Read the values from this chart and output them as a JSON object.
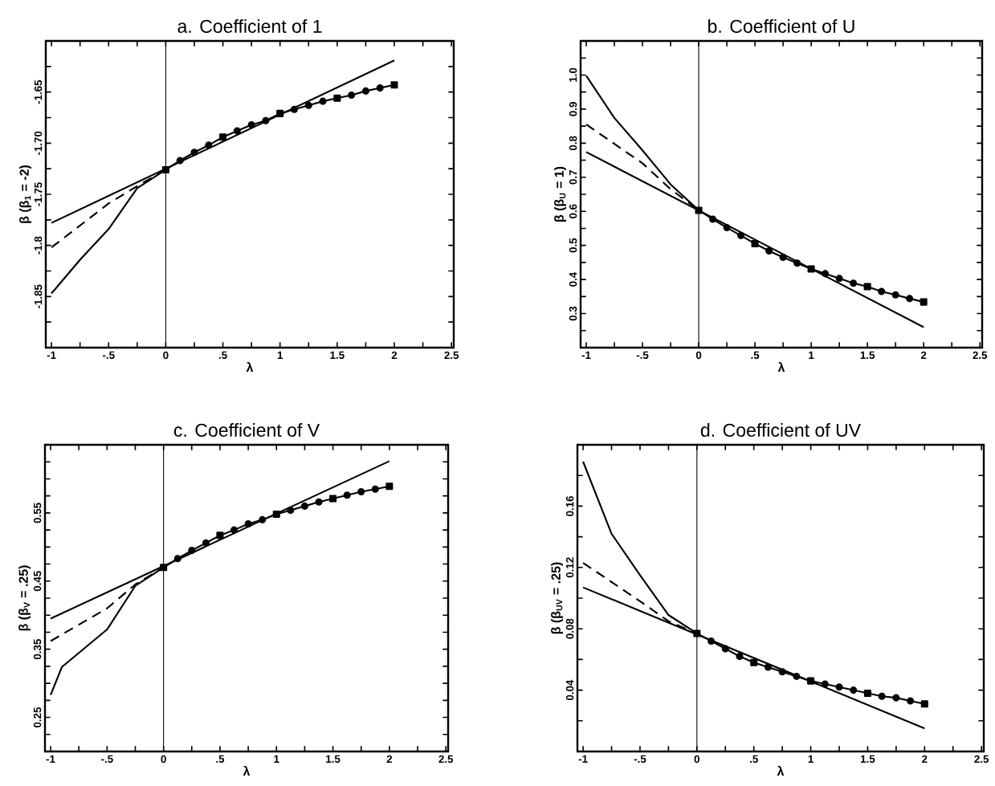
{
  "chart_data": [
    {
      "type": "line",
      "title": "a. Coefficient of 1",
      "xlabel": "λ",
      "ylabel": "β     (β$_{1}$ = -2)",
      "xlim": [
        -1.05,
        2.52
      ],
      "ylim": [
        -1.9,
        -1.6
      ],
      "xticks": [
        -1,
        {
          "value": -0.75,
          "label": null
        },
        {
          "value": -0.5,
          "label": "-.5"
        },
        {
          "value": -0.25,
          "label": null
        },
        0,
        {
          "value": 0.25,
          "label": null
        },
        {
          "value": 0.5,
          "label": ".5"
        },
        {
          "value": 0.75,
          "label": null
        },
        1,
        {
          "value": 1.25,
          "label": null
        },
        1.5,
        {
          "value": 1.75,
          "label": null
        },
        2,
        {
          "value": 2.25,
          "label": null
        },
        2.5
      ],
      "yticks": [
        {
          "value": -1.875,
          "label": null
        },
        -1.85,
        {
          "value": -1.825,
          "label": null
        },
        -1.8,
        {
          "value": -1.775,
          "label": null
        },
        -1.75,
        {
          "value": -1.725,
          "label": null
        },
        {
          "value": -1.7,
          "label": "-1.70"
        },
        {
          "value": -1.675,
          "label": null
        },
        -1.65,
        {
          "value": -1.625,
          "label": null
        }
      ],
      "ref_lines": [
        {
          "axis": "x",
          "value": 0
        }
      ],
      "series": [
        {
          "color": "#000000",
          "line_style": "solid",
          "marker": "none",
          "x": [
            -1,
            2
          ],
          "values": [
            -1.778,
            -1.619
          ]
        },
        {
          "color": "#000000",
          "line_style": "dashed",
          "marker": "none",
          "x": [
            -1,
            -0.5,
            -0.25,
            0
          ],
          "values": [
            -1.802,
            -1.759,
            -1.742,
            -1.726
          ]
        },
        {
          "color": "#000000",
          "line_style": "solid",
          "marker": "none",
          "x": [
            -1,
            -0.75,
            -0.5,
            -0.25,
            0
          ],
          "values": [
            -1.847,
            -1.814,
            -1.784,
            -1.744,
            -1.726
          ]
        },
        {
          "color": "#000000",
          "line_style": "solid",
          "marker": "none",
          "x": [
            0,
            0.125,
            0.25,
            0.375,
            0.5,
            0.625,
            0.75,
            0.875,
            1,
            1.125,
            1.25,
            1.375,
            1.5,
            1.625,
            1.75,
            1.875,
            2
          ],
          "values": [
            -1.726,
            -1.717,
            -1.709,
            -1.702,
            -1.694,
            -1.688,
            -1.682,
            -1.678,
            -1.671,
            -1.667,
            -1.663,
            -1.659,
            -1.656,
            -1.653,
            -1.649,
            -1.646,
            -1.643
          ]
        },
        {
          "type": "scatter",
          "color": "#000000",
          "marker": "circle",
          "x": [
            0.125,
            0.25,
            0.375,
            0.625,
            0.75,
            0.875,
            1.125,
            1.25,
            1.375,
            1.625,
            1.75,
            1.875
          ],
          "values": [
            -1.717,
            -1.709,
            -1.702,
            -1.688,
            -1.682,
            -1.678,
            -1.667,
            -1.663,
            -1.659,
            -1.653,
            -1.649,
            -1.646
          ]
        },
        {
          "type": "scatter",
          "color": "#000000",
          "marker": "square",
          "x": [
            0,
            0.5,
            1,
            1.5,
            2
          ],
          "values": [
            -1.726,
            -1.694,
            -1.671,
            -1.656,
            -1.643
          ]
        }
      ]
    },
    {
      "type": "line",
      "title": "b. Coefficient of U",
      "xlabel": "λ",
      "ylabel": "β     (β$_{U}$ = 1)",
      "xlim": [
        -1.05,
        2.52
      ],
      "ylim": [
        0.2,
        1.1
      ],
      "xticks": [
        -1,
        {
          "value": -0.75,
          "label": null
        },
        {
          "value": -0.5,
          "label": "-.5"
        },
        {
          "value": -0.25,
          "label": null
        },
        0,
        {
          "value": 0.25,
          "label": null
        },
        {
          "value": 0.5,
          "label": ".5"
        },
        {
          "value": 0.75,
          "label": null
        },
        1,
        {
          "value": 1.25,
          "label": null
        },
        1.5,
        {
          "value": 1.75,
          "label": null
        },
        2,
        {
          "value": 2.25,
          "label": null
        },
        2.5
      ],
      "yticks": [
        {
          "value": 0.25,
          "label": null
        },
        0.3,
        {
          "value": 0.35,
          "label": null
        },
        0.4,
        {
          "value": 0.45,
          "label": null
        },
        0.5,
        {
          "value": 0.55,
          "label": null
        },
        0.6,
        {
          "value": 0.65,
          "label": null
        },
        0.7,
        {
          "value": 0.75,
          "label": null
        },
        0.8,
        {
          "value": 0.85,
          "label": null
        },
        0.9,
        {
          "value": 0.95,
          "label": null
        },
        {
          "value": 1.0,
          "label": "1.0"
        },
        {
          "value": 1.05,
          "label": null
        }
      ],
      "ref_lines": [
        {
          "axis": "x",
          "value": 0
        }
      ],
      "series": [
        {
          "color": "#000000",
          "line_style": "solid",
          "marker": "none",
          "x": [
            -1,
            2
          ],
          "values": [
            0.774,
            0.26
          ]
        },
        {
          "color": "#000000",
          "line_style": "dashed",
          "marker": "none",
          "x": [
            -1,
            -0.5,
            -0.25,
            0
          ],
          "values": [
            0.855,
            0.741,
            0.665,
            0.603
          ]
        },
        {
          "color": "#000000",
          "line_style": "solid",
          "marker": "none",
          "x": [
            -1,
            -0.75,
            -0.5,
            -0.25,
            0
          ],
          "values": [
            0.998,
            0.874,
            0.779,
            0.679,
            0.603
          ]
        },
        {
          "color": "#000000",
          "line_style": "solid",
          "marker": "none",
          "x": [
            0,
            0.125,
            0.25,
            0.375,
            0.5,
            0.625,
            0.75,
            0.875,
            1,
            1.125,
            1.25,
            1.375,
            1.5,
            1.625,
            1.75,
            1.875,
            2
          ],
          "values": [
            0.603,
            0.577,
            0.552,
            0.529,
            0.505,
            0.484,
            0.465,
            0.448,
            0.431,
            0.417,
            0.403,
            0.389,
            0.379,
            0.365,
            0.355,
            0.344,
            0.334
          ]
        },
        {
          "type": "scatter",
          "color": "#000000",
          "marker": "circle",
          "x": [
            0.125,
            0.25,
            0.375,
            0.625,
            0.75,
            0.875,
            1.125,
            1.25,
            1.375,
            1.625,
            1.75,
            1.875
          ],
          "values": [
            0.577,
            0.552,
            0.529,
            0.484,
            0.465,
            0.448,
            0.417,
            0.403,
            0.389,
            0.365,
            0.355,
            0.344
          ]
        },
        {
          "type": "scatter",
          "color": "#000000",
          "marker": "square",
          "x": [
            0,
            0.5,
            1,
            1.5,
            2
          ],
          "values": [
            0.603,
            0.505,
            0.431,
            0.379,
            0.334
          ]
        }
      ]
    },
    {
      "type": "line",
      "title": "c. Coefficient of V",
      "xlabel": "λ",
      "ylabel": "β     (β$_{V}$ = .25)",
      "xlim": [
        -1.05,
        2.52
      ],
      "ylim": [
        0.2,
        0.65
      ],
      "xticks": [
        -1,
        {
          "value": -0.75,
          "label": null
        },
        {
          "value": -0.5,
          "label": "-.5"
        },
        {
          "value": -0.25,
          "label": null
        },
        0,
        {
          "value": 0.25,
          "label": null
        },
        {
          "value": 0.5,
          "label": ".5"
        },
        {
          "value": 0.75,
          "label": null
        },
        1,
        {
          "value": 1.25,
          "label": null
        },
        1.5,
        {
          "value": 1.75,
          "label": null
        },
        2,
        {
          "value": 2.25,
          "label": null
        },
        2.5
      ],
      "yticks": [
        {
          "value": 0.225,
          "label": null
        },
        0.25,
        {
          "value": 0.275,
          "label": null
        },
        {
          "value": 0.3,
          "label": null
        },
        {
          "value": 0.325,
          "label": null
        },
        0.35,
        {
          "value": 0.375,
          "label": null
        },
        {
          "value": 0.4,
          "label": null
        },
        {
          "value": 0.425,
          "label": null
        },
        0.45,
        {
          "value": 0.475,
          "label": null
        },
        {
          "value": 0.5,
          "label": null
        },
        {
          "value": 0.525,
          "label": null
        },
        0.55,
        {
          "value": 0.575,
          "label": null
        },
        {
          "value": 0.6,
          "label": null
        },
        {
          "value": 0.625,
          "label": null
        }
      ],
      "ref_lines": [
        {
          "axis": "x",
          "value": 0
        }
      ],
      "series": [
        {
          "color": "#000000",
          "line_style": "solid",
          "marker": "none",
          "x": [
            -1,
            2
          ],
          "values": [
            0.395,
            0.626
          ]
        },
        {
          "color": "#000000",
          "line_style": "dashed",
          "marker": "none",
          "x": [
            -1,
            -0.5,
            -0.25,
            0
          ],
          "values": [
            0.362,
            0.41,
            0.445,
            0.47
          ]
        },
        {
          "color": "#000000",
          "line_style": "solid",
          "marker": "none",
          "x": [
            -1,
            -0.9,
            -0.5,
            -0.25,
            0
          ],
          "values": [
            0.283,
            0.324,
            0.379,
            0.443,
            0.47
          ]
        },
        {
          "color": "#000000",
          "line_style": "solid",
          "marker": "none",
          "x": [
            0,
            0.125,
            0.25,
            0.375,
            0.5,
            0.625,
            0.75,
            0.875,
            1,
            1.125,
            1.25,
            1.375,
            1.5,
            1.625,
            1.75,
            1.875,
            2
          ],
          "values": [
            0.47,
            0.483,
            0.495,
            0.506,
            0.517,
            0.525,
            0.534,
            0.54,
            0.548,
            0.554,
            0.56,
            0.566,
            0.571,
            0.576,
            0.581,
            0.585,
            0.589
          ]
        },
        {
          "type": "scatter",
          "color": "#000000",
          "marker": "circle",
          "x": [
            0.125,
            0.25,
            0.375,
            0.625,
            0.75,
            0.875,
            1.125,
            1.25,
            1.375,
            1.625,
            1.75,
            1.875
          ],
          "values": [
            0.483,
            0.495,
            0.506,
            0.525,
            0.534,
            0.54,
            0.554,
            0.56,
            0.566,
            0.576,
            0.581,
            0.585
          ]
        },
        {
          "type": "scatter",
          "color": "#000000",
          "marker": "square",
          "x": [
            0,
            0.5,
            1,
            1.5,
            2
          ],
          "values": [
            0.47,
            0.517,
            0.548,
            0.571,
            0.589
          ]
        }
      ]
    },
    {
      "type": "line",
      "title": "d. Coefficient of UV",
      "xlabel": "λ",
      "ylabel": "β     (β$_{UV}$ = .25)",
      "xlim": [
        -1.05,
        2.52
      ],
      "ylim": [
        0,
        0.2
      ],
      "xticks": [
        -1,
        {
          "value": -0.75,
          "label": null
        },
        {
          "value": -0.5,
          "label": "-.5"
        },
        {
          "value": -0.25,
          "label": null
        },
        0,
        {
          "value": 0.25,
          "label": null
        },
        {
          "value": 0.5,
          "label": ".5"
        },
        {
          "value": 0.75,
          "label": null
        },
        1,
        {
          "value": 1.25,
          "label": null
        },
        1.5,
        {
          "value": 1.75,
          "label": null
        },
        2,
        {
          "value": 2.25,
          "label": null
        },
        2.5
      ],
      "yticks": [
        {
          "value": 0.02,
          "label": null
        },
        0.04,
        {
          "value": 0.06,
          "label": null
        },
        0.08,
        {
          "value": 0.1,
          "label": null
        },
        0.12,
        {
          "value": 0.14,
          "label": null
        },
        0.16,
        {
          "value": 0.18,
          "label": null
        }
      ],
      "ref_lines": [
        {
          "axis": "x",
          "value": 0
        }
      ],
      "series": [
        {
          "color": "#000000",
          "line_style": "solid",
          "marker": "none",
          "x": [
            -1,
            2
          ],
          "values": [
            0.107,
            0.015
          ]
        },
        {
          "color": "#000000",
          "line_style": "dashed",
          "marker": "none",
          "x": [
            -1,
            -0.5,
            -0.25,
            0
          ],
          "values": [
            0.123,
            0.098,
            0.085,
            0.077
          ]
        },
        {
          "color": "#000000",
          "line_style": "solid",
          "marker": "none",
          "x": [
            -1,
            -0.75,
            -0.5,
            -0.25,
            0
          ],
          "values": [
            0.189,
            0.142,
            0.115,
            0.089,
            0.077
          ]
        },
        {
          "color": "#000000",
          "line_style": "solid",
          "marker": "none",
          "x": [
            0,
            0.125,
            0.25,
            0.375,
            0.5,
            0.625,
            0.75,
            0.875,
            1,
            1.125,
            1.25,
            1.375,
            1.5,
            1.625,
            1.75,
            1.875,
            2
          ],
          "values": [
            0.077,
            0.072,
            0.067,
            0.062,
            0.058,
            0.055,
            0.052,
            0.049,
            0.046,
            0.044,
            0.042,
            0.04,
            0.038,
            0.036,
            0.035,
            0.033,
            0.031
          ]
        },
        {
          "type": "scatter",
          "color": "#000000",
          "marker": "circle",
          "x": [
            0.125,
            0.25,
            0.375,
            0.625,
            0.75,
            0.875,
            1.125,
            1.25,
            1.375,
            1.625,
            1.75,
            1.875
          ],
          "values": [
            0.072,
            0.067,
            0.062,
            0.055,
            0.052,
            0.049,
            0.044,
            0.042,
            0.04,
            0.036,
            0.035,
            0.033
          ]
        },
        {
          "type": "scatter",
          "color": "#000000",
          "marker": "square",
          "x": [
            0,
            0.5,
            1,
            1.5,
            2
          ],
          "values": [
            0.077,
            0.058,
            0.046,
            0.038,
            0.031
          ]
        }
      ]
    }
  ]
}
